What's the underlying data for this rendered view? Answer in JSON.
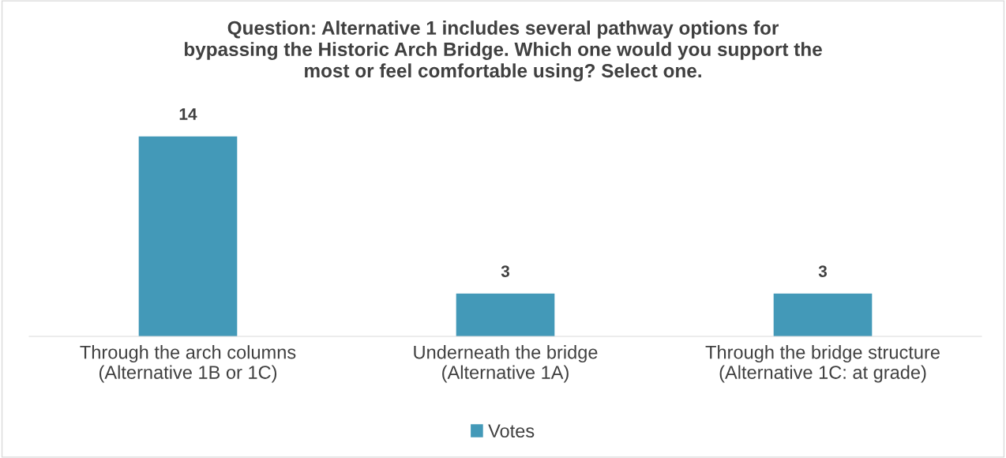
{
  "chart_data": {
    "type": "bar",
    "title": "Question: Alternative 1 includes several pathway options for\nbypassing the Historic Arch Bridge. Which one would you support the\nmost or feel comfortable using? Select one.",
    "categories": [
      "Through the arch columns\n(Alternative 1B or 1C)",
      "Underneath the bridge\n(Alternative 1A)",
      "Through the bridge structure\n(Alternative 1C: at grade)"
    ],
    "series": [
      {
        "name": "Votes",
        "color": "#4399b8",
        "values": [
          14,
          3,
          3
        ]
      }
    ],
    "data_labels": true,
    "legend": "bottom"
  }
}
